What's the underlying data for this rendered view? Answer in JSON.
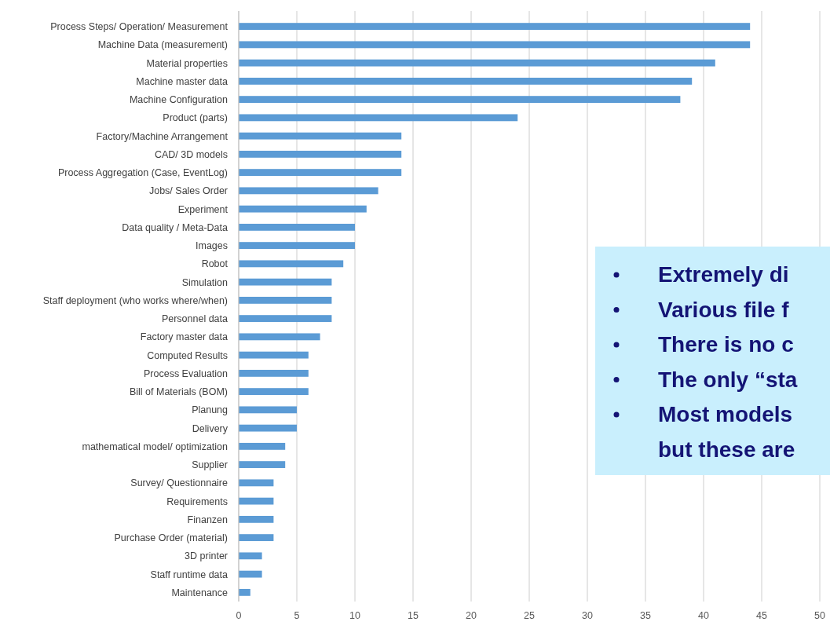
{
  "chart_data": {
    "type": "bar",
    "orientation": "horizontal",
    "categories": [
      "Process Steps/ Operation/ Measurement",
      "Machine Data (measurement)",
      "Material properties",
      "Machine master data",
      "Machine Configuration",
      "Product (parts)",
      "Factory/Machine Arrangement",
      "CAD/ 3D models",
      "Process Aggregation (Case, EventLog)",
      "Jobs/ Sales Order",
      "Experiment",
      "Data quality / Meta-Data",
      "Images",
      "Robot",
      "Simulation",
      "Staff deployment (who works where/when)",
      "Personnel data",
      "Factory master data",
      "Computed Results",
      "Process Evaluation",
      "Bill of Materials (BOM)",
      "Planung",
      "Delivery",
      "mathematical model/ optimization",
      "Supplier",
      "Survey/ Questionnaire",
      "Requirements",
      "Finanzen",
      "Purchase Order (material)",
      "3D printer",
      "Staff runtime data",
      "Maintenance"
    ],
    "values": [
      44,
      44,
      41,
      39,
      38,
      24,
      14,
      14,
      14,
      12,
      11,
      10,
      10,
      9,
      8,
      8,
      8,
      7,
      6,
      6,
      6,
      5,
      5,
      4,
      4,
      3,
      3,
      3,
      3,
      2,
      2,
      1
    ],
    "color": "#5b9bd5",
    "xlim": [
      0,
      50
    ],
    "xticks": [
      0,
      5,
      10,
      15,
      20,
      25,
      30,
      35,
      40,
      45,
      50
    ],
    "grid": "x",
    "annotations": [
      "Extremely di",
      "Various file f",
      "There is no c",
      "The only “sta",
      "Most models",
      "but these are"
    ]
  }
}
